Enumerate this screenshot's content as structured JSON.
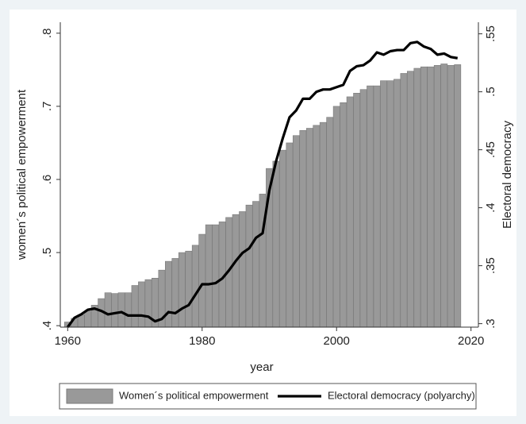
{
  "chart_data": {
    "type": "bar_line",
    "x_label": "year",
    "y_label": "women´s political empowerment",
    "y2_label": "Electoral democracy",
    "x": [
      1960,
      1961,
      1962,
      1963,
      1964,
      1965,
      1966,
      1967,
      1968,
      1969,
      1970,
      1971,
      1972,
      1973,
      1974,
      1975,
      1976,
      1977,
      1978,
      1979,
      1980,
      1981,
      1982,
      1983,
      1984,
      1985,
      1986,
      1987,
      1988,
      1989,
      1990,
      1991,
      1992,
      1993,
      1994,
      1995,
      1996,
      1997,
      1998,
      1999,
      2000,
      2001,
      2002,
      2003,
      2004,
      2005,
      2006,
      2007,
      2008,
      2009,
      2010,
      2011,
      2012,
      2013,
      2014,
      2015,
      2016,
      2017,
      2018
    ],
    "series": [
      {
        "name": "Women´s political empowerment",
        "color": "#999999",
        "kind": "bar",
        "values": [
          0.405,
          0.41,
          0.415,
          0.42,
          0.428,
          0.437,
          0.445,
          0.444,
          0.445,
          0.445,
          0.455,
          0.46,
          0.463,
          0.465,
          0.476,
          0.488,
          0.492,
          0.5,
          0.502,
          0.51,
          0.525,
          0.538,
          0.538,
          0.542,
          0.548,
          0.552,
          0.556,
          0.565,
          0.57,
          0.58,
          0.615,
          0.625,
          0.64,
          0.65,
          0.66,
          0.667,
          0.67,
          0.674,
          0.678,
          0.685,
          0.7,
          0.705,
          0.713,
          0.718,
          0.723,
          0.728,
          0.728,
          0.735,
          0.735,
          0.737,
          0.745,
          0.748,
          0.752,
          0.754,
          0.754,
          0.756,
          0.758,
          0.756,
          0.757
        ]
      },
      {
        "name": "Electoral democracy (polyarchy)",
        "color": "#000000",
        "kind": "line",
        "axis": "y2",
        "values": [
          0.297,
          0.305,
          0.308,
          0.312,
          0.313,
          0.311,
          0.308,
          0.309,
          0.31,
          0.307,
          0.307,
          0.307,
          0.306,
          0.302,
          0.304,
          0.31,
          0.309,
          0.313,
          0.316,
          0.325,
          0.334,
          0.334,
          0.335,
          0.339,
          0.346,
          0.354,
          0.361,
          0.365,
          0.374,
          0.378,
          0.415,
          0.44,
          0.46,
          0.478,
          0.484,
          0.494,
          0.494,
          0.5,
          0.502,
          0.502,
          0.504,
          0.506,
          0.518,
          0.522,
          0.523,
          0.527,
          0.534,
          0.532,
          0.535,
          0.536,
          0.536,
          0.542,
          0.543,
          0.539,
          0.537,
          0.532,
          0.533,
          0.53,
          0.529
        ]
      }
    ],
    "xlim": [
      1958.9,
      2021.1
    ],
    "xticks": [
      1960,
      1980,
      2000,
      2020
    ],
    "ylim": [
      0.398,
      0.815
    ],
    "yticks": [
      {
        "value": 0.4,
        "label": ".4"
      },
      {
        "value": 0.5,
        "label": ".5"
      },
      {
        "value": 0.6,
        "label": ".6"
      },
      {
        "value": 0.7,
        "label": ".7"
      },
      {
        "value": 0.8,
        "label": ".8"
      }
    ],
    "y2lim": [
      0.297,
      0.56
    ],
    "y2ticks": [
      {
        "value": 0.3,
        "label": ".3"
      },
      {
        "value": 0.35,
        "label": ".35"
      },
      {
        "value": 0.4,
        "label": ".4"
      },
      {
        "value": 0.45,
        "label": ".45"
      },
      {
        "value": 0.5,
        "label": ".5"
      },
      {
        "value": 0.55,
        "label": ".55"
      }
    ],
    "legend": "bottom"
  }
}
